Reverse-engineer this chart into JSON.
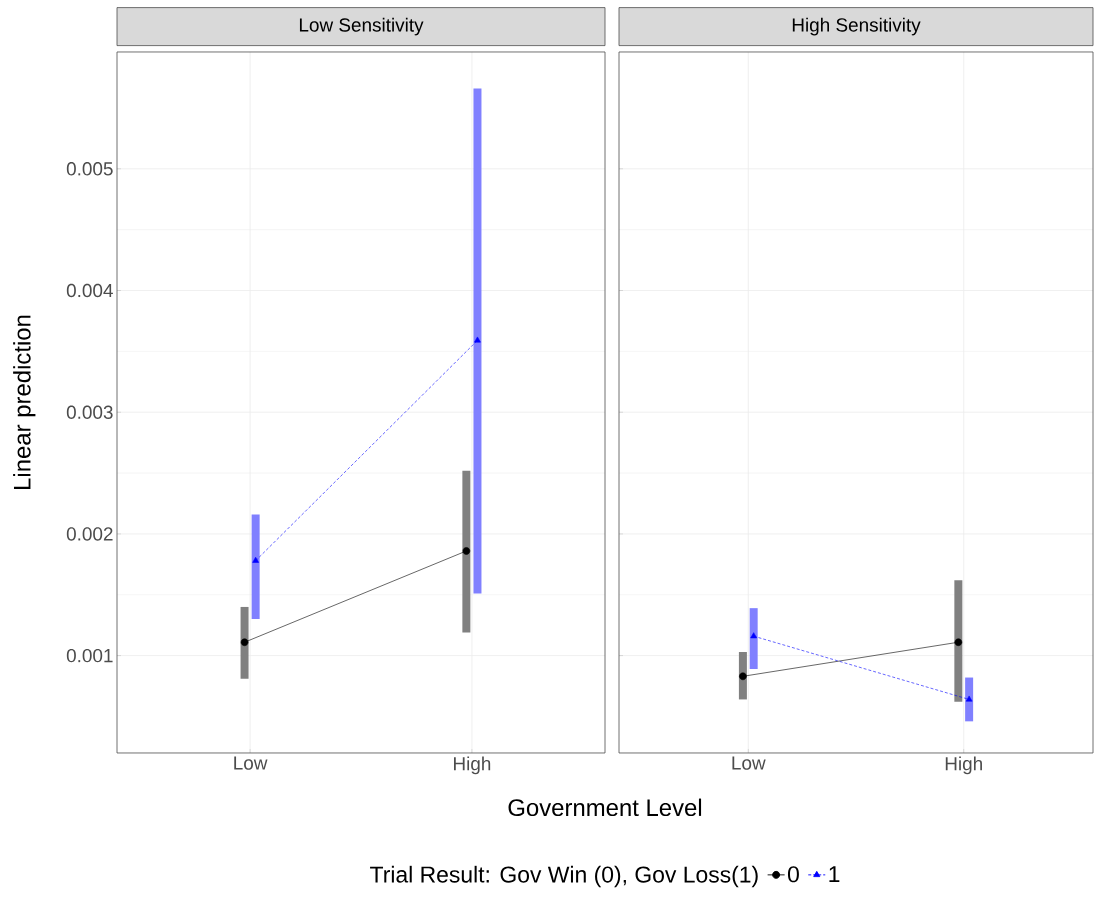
{
  "chart_data": [
    {
      "type": "line",
      "title": "Low Sensitivity",
      "xlabel": "Government Level",
      "ylabel": "Linear prediction",
      "legend_title": "Trial Result: Gov Win (0), Gov Loss(1)",
      "legend": "bottom",
      "grid": true,
      "categories": [
        "Low",
        "High"
      ],
      "ylim": [
        0.0002,
        0.00596
      ],
      "yticks": [
        0.001,
        0.002,
        0.003,
        0.004,
        0.005
      ],
      "series": [
        {
          "name": "0",
          "color": "#000000",
          "marker": "circle",
          "line_style": "solid",
          "values": [
            0.00111,
            0.00186
          ],
          "errors": [
            [
              0.00081,
              0.0014
            ],
            [
              0.00119,
              0.00252
            ]
          ]
        },
        {
          "name": "1",
          "color": "#0000ff",
          "marker": "triangle",
          "line_style": "dashed",
          "values": [
            0.00178,
            0.00359
          ],
          "errors": [
            [
              0.0013,
              0.00216
            ],
            [
              0.00151,
              0.00566
            ]
          ]
        }
      ]
    },
    {
      "type": "line",
      "title": "High Sensitivity",
      "grid": true,
      "tick_labels": "x",
      "categories": [
        "Low",
        "High"
      ],
      "ylim": [
        0.0002,
        0.00596
      ],
      "yticks": [
        0.001,
        0.002,
        0.003,
        0.004,
        0.005
      ],
      "series": [
        {
          "color": "#000000",
          "marker": "circle",
          "line_style": "solid",
          "values": [
            0.00083,
            0.00111
          ],
          "errors": [
            [
              0.00064,
              0.00103
            ],
            [
              0.00062,
              0.00162
            ]
          ]
        },
        {
          "color": "#0000ff",
          "marker": "triangle",
          "line_style": "dashed",
          "values": [
            0.00116,
            0.00064
          ],
          "errors": [
            [
              0.00089,
              0.00139
            ],
            [
              0.00046,
              0.00082
            ]
          ]
        }
      ]
    }
  ]
}
